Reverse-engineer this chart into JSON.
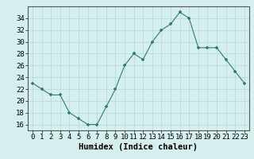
{
  "x": [
    0,
    1,
    2,
    3,
    4,
    5,
    6,
    7,
    8,
    9,
    10,
    11,
    12,
    13,
    14,
    15,
    16,
    17,
    18,
    19,
    20,
    21,
    22,
    23
  ],
  "y": [
    23,
    22,
    21,
    21,
    18,
    17,
    16,
    16,
    19,
    22,
    26,
    28,
    27,
    30,
    32,
    33,
    35,
    34,
    29,
    29,
    29,
    27,
    25,
    23
  ],
  "line_color": "#2d7d6e",
  "marker_color": "#2d7d6e",
  "bg_color": "#d5efef",
  "grid_color": "#b2d8d8",
  "xlabel": "Humidex (Indice chaleur)",
  "xlim": [
    -0.5,
    23.5
  ],
  "ylim": [
    15,
    36
  ],
  "yticks": [
    16,
    18,
    20,
    22,
    24,
    26,
    28,
    30,
    32,
    34
  ],
  "xticks": [
    0,
    1,
    2,
    3,
    4,
    5,
    6,
    7,
    8,
    9,
    10,
    11,
    12,
    13,
    14,
    15,
    16,
    17,
    18,
    19,
    20,
    21,
    22,
    23
  ],
  "xlabel_fontsize": 7.5,
  "tick_fontsize": 6.5
}
